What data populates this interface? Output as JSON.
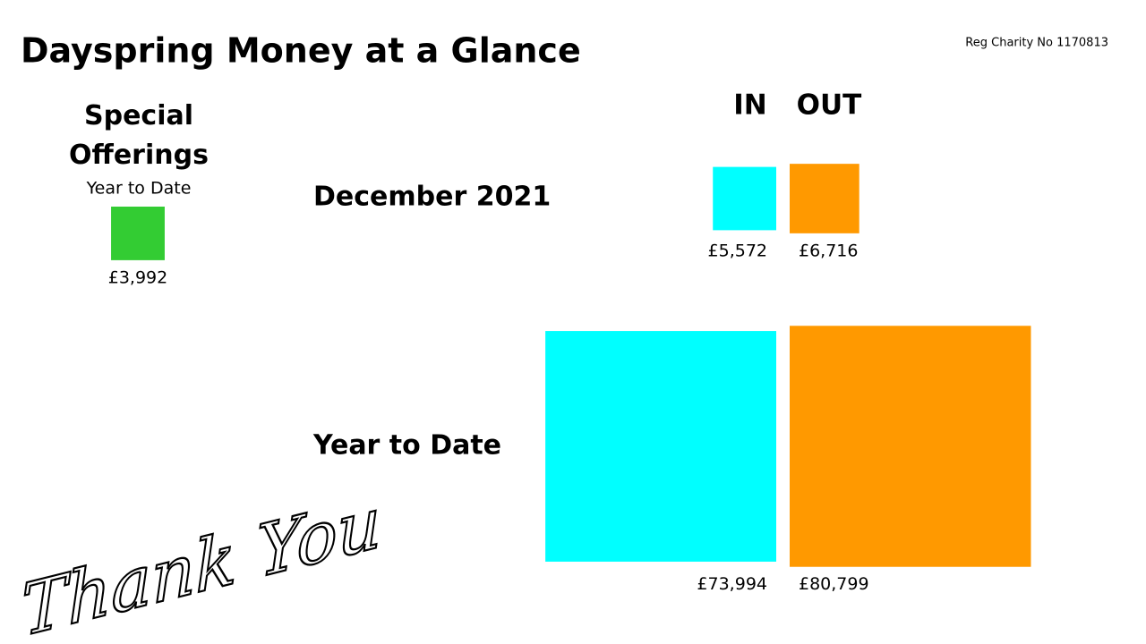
{
  "title": "Dayspring Money at a Glance",
  "charity": "Reg Charity No 1170813",
  "column_headers": [
    "IN",
    "OUT"
  ],
  "colors": [
    "#00ffff",
    "#ff9900"
  ],
  "special": {
    "heading": "Special Offerings",
    "subheading": "Year to Date",
    "value": 3992,
    "value_label": "£3,992",
    "color": "#33cc33"
  },
  "rows": [
    {
      "label": "December 2021",
      "values": [
        5572,
        6716
      ],
      "value_labels": [
        "£5,572",
        "£6,716"
      ]
    },
    {
      "label": "Year to Date",
      "values": [
        73994,
        80799
      ],
      "value_labels": [
        "£73,994",
        "£80,799"
      ]
    }
  ],
  "footer": "Thank You"
}
